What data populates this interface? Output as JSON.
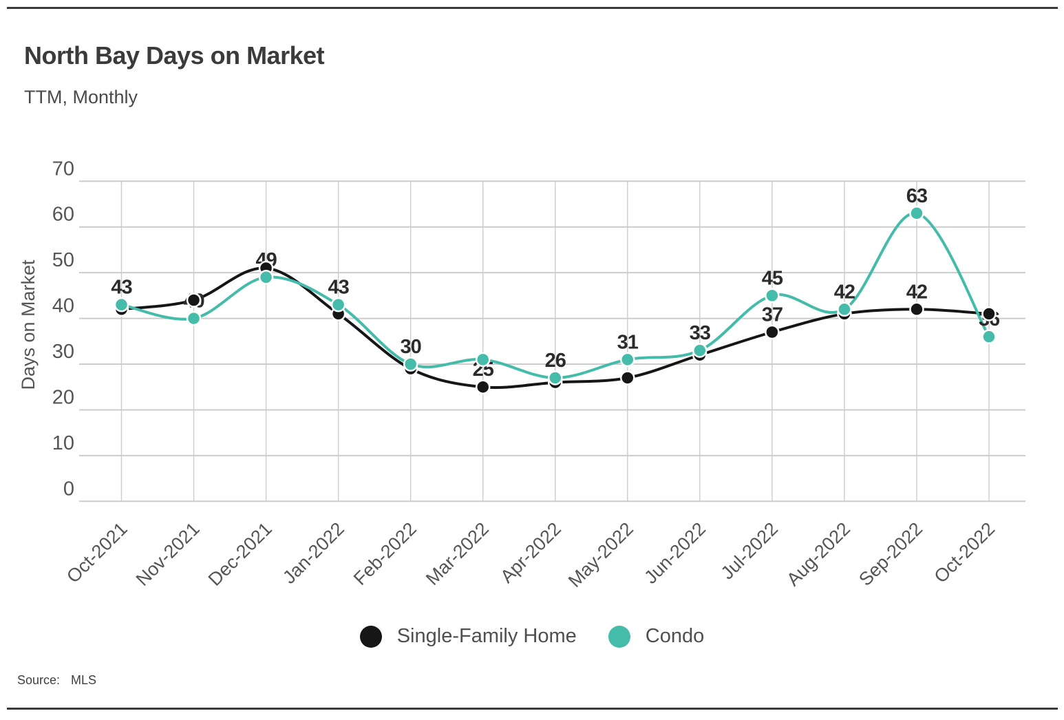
{
  "page": {
    "title": "North Bay Days on Market",
    "subtitle": "TTM, Monthly",
    "source_label": "Source:",
    "source_value": "MLS"
  },
  "chart_data": {
    "type": "line",
    "title": "North Bay Days on Market",
    "subtitle": "TTM, Monthly",
    "xlabel": "",
    "ylabel": "Days on Market",
    "ylim": [
      0,
      70
    ],
    "ytick_step": 10,
    "yticks": [
      70,
      60,
      50,
      40,
      30,
      20,
      10,
      0
    ],
    "grid": true,
    "legend_position": "bottom",
    "smooth_lines": true,
    "categories": [
      "Oct-2021",
      "Nov-2021",
      "Dec-2021",
      "Jan-2022",
      "Feb-2022",
      "Mar-2022",
      "Apr-2022",
      "May-2022",
      "Jun-2022",
      "Jul-2022",
      "Aug-2022",
      "Sep-2022",
      "Oct-2022"
    ],
    "series": [
      {
        "name": "Single-Family Home",
        "color": "#161616",
        "values": [
          42,
          44,
          51,
          41,
          29,
          25,
          26,
          27,
          32,
          37,
          41,
          42,
          41
        ]
      },
      {
        "name": "Condo",
        "color": "#45bbaa",
        "values": [
          43,
          40,
          49,
          43,
          30,
          31,
          27,
          31,
          33,
          45,
          42,
          63,
          36
        ]
      }
    ],
    "point_labels": [
      {
        "category_index": 0,
        "series": "Condo",
        "text": "43",
        "anchor_value": 43
      },
      {
        "category_index": 1,
        "series": "Condo",
        "text": "40",
        "anchor_value": 40
      },
      {
        "category_index": 2,
        "series": "Condo",
        "text": "49",
        "anchor_value": 49
      },
      {
        "category_index": 3,
        "series": "Condo",
        "text": "43",
        "anchor_value": 43
      },
      {
        "category_index": 4,
        "series": "Condo",
        "text": "30",
        "anchor_value": 30
      },
      {
        "category_index": 5,
        "series": "Single-Family Home",
        "text": "25",
        "anchor_value": 25
      },
      {
        "category_index": 6,
        "series": "Single-Family Home",
        "text": "26",
        "anchor_value": 27
      },
      {
        "category_index": 7,
        "series": "Condo",
        "text": "31",
        "anchor_value": 31
      },
      {
        "category_index": 8,
        "series": "Condo",
        "text": "33",
        "anchor_value": 33
      },
      {
        "category_index": 9,
        "series": "Single-Family Home",
        "text": "37",
        "anchor_value": 37
      },
      {
        "category_index": 9,
        "series": "Condo",
        "text": "45",
        "anchor_value": 45
      },
      {
        "category_index": 10,
        "series": "Condo",
        "text": "42",
        "anchor_value": 42
      },
      {
        "category_index": 11,
        "series": "Single-Family Home",
        "text": "42",
        "anchor_value": 42
      },
      {
        "category_index": 11,
        "series": "Condo",
        "text": "63",
        "anchor_value": 63
      },
      {
        "category_index": 12,
        "series": "Condo",
        "text": "36",
        "anchor_value": 36
      }
    ],
    "source": "MLS"
  },
  "colors": {
    "accent_teal": "#45bbaa",
    "series_black": "#161616",
    "gridline": "#cccccc",
    "tick_text": "#555555",
    "data_label_text": "#2b2b2b",
    "border_rule": "#3a3a3a"
  }
}
